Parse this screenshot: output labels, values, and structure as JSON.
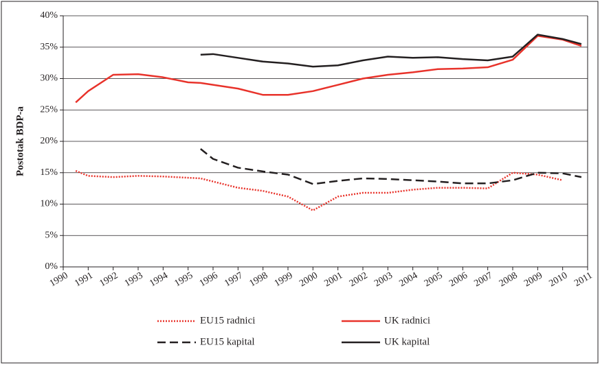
{
  "chart_data": {
    "type": "line",
    "y_label": "Postotak BDP-a",
    "x": [
      1990.5,
      1991,
      1992,
      1993,
      1994,
      1995,
      1995.5,
      1996,
      1997,
      1998,
      1999,
      2000,
      2001,
      2002,
      2003,
      2004,
      2005,
      2006,
      2007,
      2008,
      2009,
      2010,
      2010.75
    ],
    "series": [
      {
        "name": "EU15 radnici",
        "color": "#e8322a",
        "style": "dotted",
        "values": [
          15.3,
          14.5,
          14.3,
          14.5,
          14.4,
          14.2,
          14.1,
          13.6,
          12.6,
          12.1,
          11.2,
          9.0,
          11.2,
          11.8,
          11.8,
          12.3,
          12.6,
          12.6,
          12.5,
          15.0,
          14.7,
          13.8,
          null
        ]
      },
      {
        "name": "UK radnici",
        "color": "#e8322a",
        "style": "solid",
        "values": [
          26.2,
          28.0,
          30.6,
          30.7,
          30.2,
          29.4,
          29.3,
          29.0,
          28.4,
          27.4,
          27.4,
          28.0,
          29.0,
          30.0,
          30.6,
          31.0,
          31.5,
          31.6,
          31.8,
          33.0,
          36.8,
          36.2,
          35.2
        ]
      },
      {
        "name": "EU15 kapital",
        "color": "#231f20",
        "style": "dashed",
        "values": [
          null,
          null,
          null,
          null,
          null,
          null,
          18.8,
          17.2,
          15.8,
          15.2,
          14.7,
          13.2,
          13.7,
          14.1,
          14.0,
          13.8,
          13.6,
          13.3,
          13.3,
          13.8,
          15.0,
          14.9,
          14.3
        ]
      },
      {
        "name": "UK kapital",
        "color": "#231f20",
        "style": "solid",
        "values": [
          null,
          null,
          null,
          null,
          null,
          null,
          33.8,
          33.9,
          33.3,
          32.7,
          32.4,
          31.9,
          32.1,
          32.9,
          33.5,
          33.3,
          33.4,
          33.1,
          32.9,
          33.5,
          37.0,
          36.3,
          35.5
        ]
      }
    ],
    "xlim": [
      1990,
      2011
    ],
    "xticks": [
      1990,
      1991,
      1992,
      1993,
      1994,
      1995,
      1996,
      1997,
      1998,
      1999,
      2000,
      2001,
      2002,
      2003,
      2004,
      2005,
      2006,
      2007,
      2008,
      2009,
      2010,
      2011
    ],
    "ylim": [
      0,
      40
    ],
    "yticks": [
      {
        "value": 0,
        "label": "0%"
      },
      {
        "value": 5,
        "label": "5%"
      },
      {
        "value": 10,
        "label": "10%"
      },
      {
        "value": 15,
        "label": "15%"
      },
      {
        "value": 20,
        "label": "20%"
      },
      {
        "value": 25,
        "label": "25%"
      },
      {
        "value": 30,
        "label": "30%"
      },
      {
        "value": 35,
        "label": "35%"
      },
      {
        "value": 40,
        "label": "40%"
      }
    ],
    "grid": true,
    "legend": "bottom"
  }
}
